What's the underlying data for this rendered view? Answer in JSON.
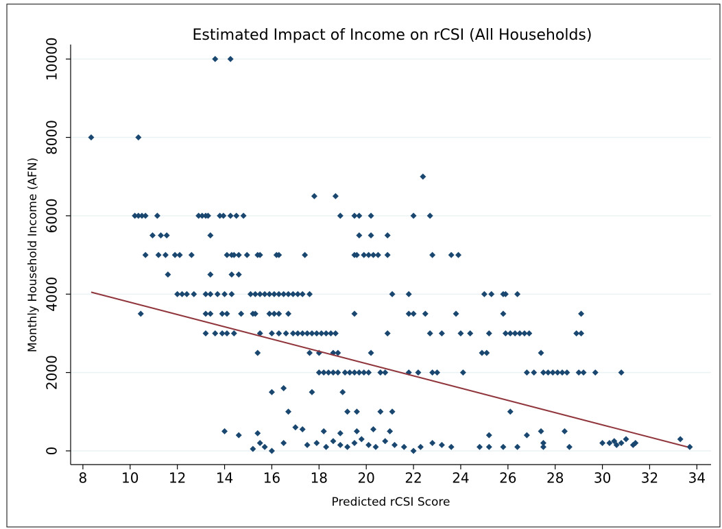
{
  "chart_data": {
    "type": "scatter",
    "title": "Estimated Impact of Income on rCSI (All Households)",
    "x_label": "Predicted rCSI Score",
    "y_label": "Monthly Household Income (AFN)",
    "xlim": [
      7.48,
      34.6
    ],
    "ylim": [
      -350,
      10370
    ],
    "xticks": [
      8,
      10,
      12,
      14,
      16,
      18,
      20,
      22,
      24,
      26,
      28,
      30,
      32,
      34
    ],
    "yticks": [
      0,
      2000,
      4000,
      6000,
      8000,
      10000
    ],
    "grid": true,
    "color": "#1a476f",
    "x": [
      8.35,
      10.35,
      13.6,
      14.25,
      10.2,
      10.35,
      10.5,
      10.65,
      11.15,
      12.9,
      13.05,
      13.2,
      13.3,
      13.8,
      13.95,
      14.25,
      14.5,
      14.8,
      18.9,
      19.5,
      19.7,
      20.2,
      22.0,
      22.7,
      17.8,
      18.7,
      22.4,
      10.95,
      11.3,
      11.55,
      13.4,
      19.7,
      20.2,
      20.9,
      10.65,
      11.2,
      11.5,
      11.9,
      12.1,
      12.6,
      14.1,
      14.3,
      14.4,
      14.6,
      14.95,
      15.4,
      15.5,
      16.2,
      16.3,
      17.4,
      19.5,
      19.6,
      19.9,
      20.1,
      20.3,
      20.5,
      20.9,
      22.8,
      23.6,
      23.9,
      11.6,
      13.4,
      14.3,
      14.6,
      12.0,
      12.2,
      12.4,
      12.7,
      13.2,
      13.4,
      13.7,
      14.0,
      14.3,
      15.1,
      15.3,
      15.5,
      15.7,
      15.9,
      16.1,
      16.3,
      16.5,
      16.7,
      16.9,
      17.1,
      17.3,
      17.6,
      21.1,
      21.8,
      25.0,
      25.3,
      25.8,
      25.9,
      26.4,
      10.45,
      13.2,
      13.4,
      13.9,
      14.1,
      14.7,
      15.2,
      15.3,
      15.9,
      16.1,
      16.3,
      16.7,
      19.5,
      21.8,
      22.0,
      22.5,
      23.8,
      25.8,
      29.1,
      13.2,
      13.6,
      13.9,
      14.1,
      14.4,
      15.5,
      16.0,
      16.3,
      16.6,
      16.9,
      17.1,
      17.3,
      17.5,
      17.7,
      17.9,
      18.1,
      18.3,
      18.5,
      18.7,
      20.9,
      22.7,
      23.2,
      24.0,
      24.4,
      25.2,
      25.9,
      26.1,
      26.3,
      26.5,
      26.7,
      26.9,
      28.9,
      29.1,
      15.4,
      17.6,
      18.0,
      18.6,
      18.8,
      20.2,
      24.9,
      25.1,
      27.4,
      18.0,
      18.2,
      18.4,
      18.6,
      18.8,
      19.1,
      19.3,
      19.5,
      19.7,
      19.9,
      20.1,
      20.6,
      20.8,
      21.8,
      22.2,
      22.8,
      23.0,
      24.1,
      26.8,
      27.1,
      27.5,
      27.7,
      27.9,
      28.1,
      28.3,
      28.5,
      29.0,
      29.2,
      29.7,
      30.8,
      16.0,
      17.7,
      19.0,
      16.5,
      16.7,
      19.2,
      19.6,
      20.6,
      21.1,
      26.1,
      14.0,
      14.6,
      15.4,
      17.0,
      17.3,
      18.2,
      18.9,
      19.6,
      20.3,
      21.0,
      27.4,
      28.4,
      25.2,
      26.8,
      15.2,
      15.5,
      15.7,
      16.0,
      16.5,
      17.5,
      17.9,
      18.3,
      18.6,
      18.9,
      19.2,
      19.5,
      19.8,
      20.1,
      20.4,
      20.8,
      21.2,
      21.6,
      22.0,
      22.3,
      22.8,
      23.2,
      23.6,
      24.8,
      25.2,
      25.8,
      26.4,
      27.5,
      27.5,
      28.6,
      30.0,
      30.3,
      30.5,
      30.8,
      31.0,
      31.4,
      33.3,
      33.7,
      30.6,
      31.3
    ],
    "values": [
      8000,
      8000,
      10000,
      10000,
      6000,
      6000,
      6000,
      6000,
      6000,
      6000,
      6000,
      6000,
      6000,
      6000,
      6000,
      6000,
      6000,
      6000,
      6000,
      6000,
      6000,
      6000,
      6000,
      6000,
      6500,
      6500,
      7000,
      5500,
      5500,
      5500,
      5500,
      5500,
      5500,
      5500,
      5000,
      5000,
      5000,
      5000,
      5000,
      5000,
      5000,
      5000,
      5000,
      5000,
      5000,
      5000,
      5000,
      5000,
      5000,
      5000,
      5000,
      5000,
      5000,
      5000,
      5000,
      5000,
      5000,
      5000,
      5000,
      5000,
      4500,
      4500,
      4500,
      4500,
      4000,
      4000,
      4000,
      4000,
      4000,
      4000,
      4000,
      4000,
      4000,
      4000,
      4000,
      4000,
      4000,
      4000,
      4000,
      4000,
      4000,
      4000,
      4000,
      4000,
      4000,
      4000,
      4000,
      4000,
      4000,
      4000,
      4000,
      4000,
      4000,
      3500,
      3500,
      3500,
      3500,
      3500,
      3500,
      3500,
      3500,
      3500,
      3500,
      3500,
      3500,
      3500,
      3500,
      3500,
      3500,
      3500,
      3500,
      3500,
      3000,
      3000,
      3000,
      3000,
      3000,
      3000,
      3000,
      3000,
      3000,
      3000,
      3000,
      3000,
      3000,
      3000,
      3000,
      3000,
      3000,
      3000,
      3000,
      3000,
      3000,
      3000,
      3000,
      3000,
      3000,
      3000,
      3000,
      3000,
      3000,
      3000,
      3000,
      3000,
      3000,
      2500,
      2500,
      2500,
      2500,
      2500,
      2500,
      2500,
      2500,
      2500,
      2000,
      2000,
      2000,
      2000,
      2000,
      2000,
      2000,
      2000,
      2000,
      2000,
      2000,
      2000,
      2000,
      2000,
      2000,
      2000,
      2000,
      2000,
      2000,
      2000,
      2000,
      2000,
      2000,
      2000,
      2000,
      2000,
      2000,
      2000,
      2000,
      2000,
      1500,
      1500,
      1500,
      1600,
      1000,
      1000,
      1000,
      1000,
      1000,
      1000,
      500,
      400,
      450,
      600,
      550,
      500,
      450,
      500,
      550,
      500,
      500,
      500,
      400,
      400,
      50,
      200,
      100,
      0,
      200,
      150,
      200,
      100,
      250,
      150,
      100,
      200,
      300,
      150,
      100,
      250,
      150,
      100,
      0,
      100,
      200,
      150,
      100,
      100,
      100,
      100,
      100,
      100,
      200,
      100,
      200,
      200,
      250,
      200,
      300,
      200,
      300,
      100,
      150,
      150
    ],
    "fit": {
      "color": "#90353b",
      "x": [
        8.35,
        33.6
      ],
      "values": [
        4050,
        100
      ]
    }
  }
}
